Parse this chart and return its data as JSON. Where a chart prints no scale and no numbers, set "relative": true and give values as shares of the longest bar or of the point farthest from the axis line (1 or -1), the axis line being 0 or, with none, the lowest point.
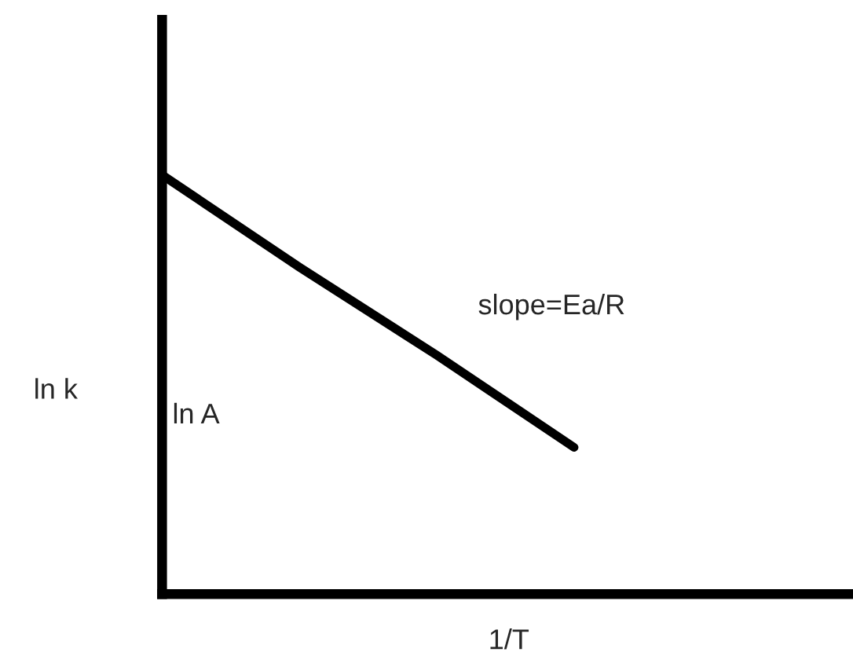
{
  "chart_data": {
    "type": "line",
    "relative": true,
    "xlabel": "1/T",
    "ylabel": "ln k",
    "categories": [
      null,
      null,
      null,
      null,
      null,
      null
    ],
    "series": [
      {
        "color": "#000000",
        "values": [
          1,
          0.78,
          0.57,
          0.35,
          null,
          null
        ]
      }
    ],
    "annotations": [
      "slope=Ea/R",
      "ln A"
    ],
    "legend": false,
    "marker": "none",
    "line_style": "solid"
  }
}
